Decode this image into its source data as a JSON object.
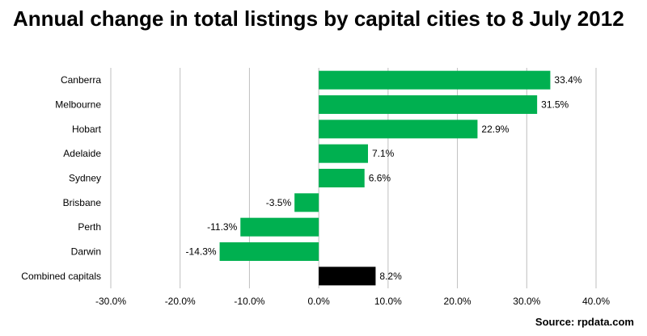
{
  "chart_data": {
    "type": "bar",
    "orientation": "horizontal",
    "title": "Annual change in total listings by capital cities to 8 July 2012",
    "source": "Source: rpdata.com",
    "categories": [
      "Canberra",
      "Melbourne",
      "Hobart",
      "Adelaide",
      "Sydney",
      "Brisbane",
      "Perth",
      "Darwin",
      "Combined capitals"
    ],
    "values": [
      33.4,
      31.5,
      22.9,
      7.1,
      6.6,
      -3.5,
      -11.3,
      -14.3,
      8.2
    ],
    "value_labels": [
      "33.4%",
      "31.5%",
      "22.9%",
      "7.1%",
      "6.6%",
      "-3.5%",
      "-11.3%",
      "-14.3%",
      "8.2%"
    ],
    "bar_colors": [
      "#00b050",
      "#00b050",
      "#00b050",
      "#00b050",
      "#00b050",
      "#00b050",
      "#00b050",
      "#00b050",
      "#000000"
    ],
    "xlim": [
      -30,
      40
    ],
    "xticks": [
      -30,
      -20,
      -10,
      0,
      10,
      20,
      30,
      40
    ],
    "xtick_labels": [
      "-30.0%",
      "-20.0%",
      "-10.0%",
      "0.0%",
      "10.0%",
      "20.0%",
      "30.0%",
      "40.0%"
    ],
    "grid": true,
    "legend": "none",
    "xlabel": "",
    "ylabel": ""
  }
}
